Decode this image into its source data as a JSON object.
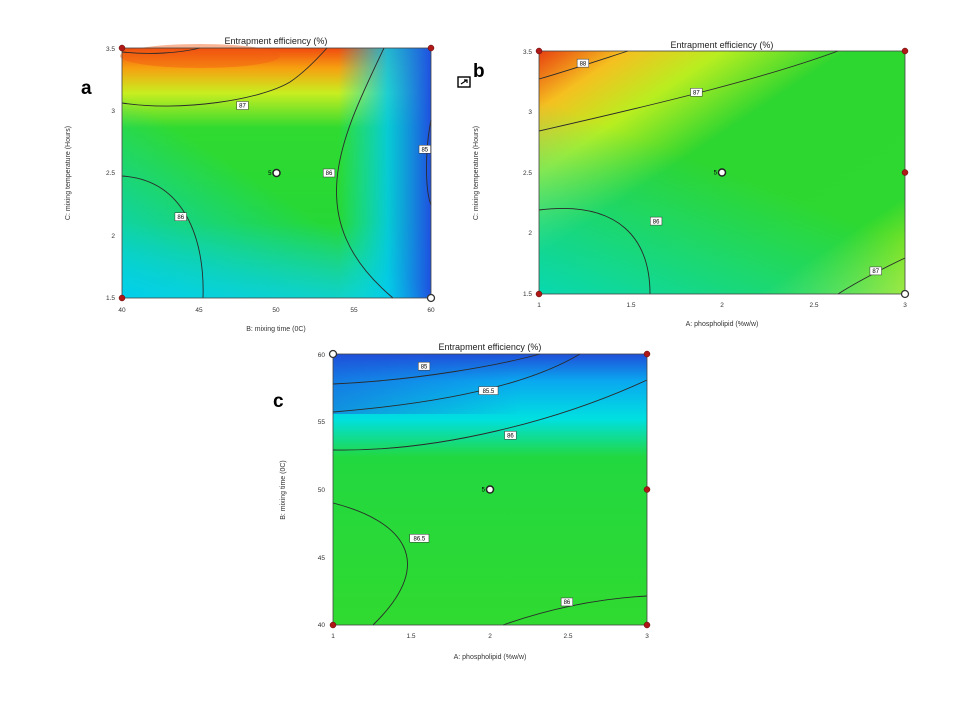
{
  "figure": {
    "panel_letters": [
      "a",
      "b",
      "c"
    ],
    "colors": {
      "low": "#1f4fd9",
      "mid_low": "#00d8f0",
      "mid": "#22d82a",
      "mid_high": "#dcf020",
      "high": "#f04a10",
      "design_point": "#b01818",
      "contour_line": "#2a2a2a"
    }
  },
  "chart_data": [
    {
      "type": "heatmap",
      "panel": "a",
      "title": "Entrapment efficiency (%)",
      "xlabel": "B: mixing time (0C)",
      "ylabel": "C: mixing temperature (Hours)",
      "xlim": [
        40,
        60
      ],
      "ylim": [
        1.5,
        3.5
      ],
      "xticks": [
        "40",
        "45",
        "50",
        "55",
        "60"
      ],
      "yticks": [
        "1.5",
        "2",
        "2.5",
        "3",
        "3.5"
      ],
      "contour_labels": [
        {
          "x": 47.8,
          "y": 3.04,
          "label": "87"
        },
        {
          "x": 43.8,
          "y": 2.15,
          "label": "86"
        },
        {
          "x": 53.4,
          "y": 2.5,
          "label": "86"
        },
        {
          "x": 59.6,
          "y": 2.69,
          "label": "85"
        }
      ],
      "center_point": {
        "x": 50,
        "y": 2.5,
        "label": "5"
      },
      "design_points": [
        {
          "x": 40,
          "y": 3.5,
          "kind": "filled"
        },
        {
          "x": 60,
          "y": 3.5,
          "kind": "filled"
        },
        {
          "x": 40,
          "y": 1.5,
          "kind": "filled"
        },
        {
          "x": 60,
          "y": 1.5,
          "kind": "open"
        }
      ]
    },
    {
      "type": "heatmap",
      "panel": "b",
      "title": "Entrapment efficiency (%)",
      "xlabel": "A: phospholipid (%w/w)",
      "ylabel": "C: mixing temperature (Hours)",
      "xlim": [
        1,
        3
      ],
      "ylim": [
        1.5,
        3.5
      ],
      "xticks": [
        "1",
        "1.5",
        "2",
        "2.5",
        "3"
      ],
      "yticks": [
        "1.5",
        "2",
        "2.5",
        "3",
        "3.5"
      ],
      "contour_labels": [
        {
          "x": 1.24,
          "y": 3.4,
          "label": "88"
        },
        {
          "x": 1.86,
          "y": 3.16,
          "label": "87"
        },
        {
          "x": 1.64,
          "y": 2.1,
          "label": "86"
        },
        {
          "x": 2.84,
          "y": 1.69,
          "label": "87"
        }
      ],
      "center_point": {
        "x": 2,
        "y": 2.5,
        "label": "5"
      },
      "design_points": [
        {
          "x": 1,
          "y": 3.5,
          "kind": "filled"
        },
        {
          "x": 3,
          "y": 3.5,
          "kind": "filled"
        },
        {
          "x": 1,
          "y": 1.5,
          "kind": "filled"
        },
        {
          "x": 3,
          "y": 2.5,
          "kind": "filled"
        },
        {
          "x": 3,
          "y": 1.5,
          "kind": "open"
        }
      ]
    },
    {
      "type": "heatmap",
      "panel": "c",
      "title": "Entrapment efficiency (%)",
      "xlabel": "A: phospholipid (%w/w)",
      "ylabel": "B: mixing time (0C)",
      "xlim": [
        1,
        3
      ],
      "ylim": [
        40,
        60
      ],
      "xticks": [
        "1",
        "1.5",
        "2",
        "2.5",
        "3"
      ],
      "yticks": [
        "40",
        "45",
        "50",
        "55",
        "60"
      ],
      "contour_labels": [
        {
          "x": 1.58,
          "y": 59.1,
          "label": "85"
        },
        {
          "x": 1.99,
          "y": 57.3,
          "label": "85.5"
        },
        {
          "x": 2.13,
          "y": 54.0,
          "label": "86"
        },
        {
          "x": 1.55,
          "y": 46.4,
          "label": "86.5"
        },
        {
          "x": 2.49,
          "y": 41.7,
          "label": "86"
        }
      ],
      "center_point": {
        "x": 2,
        "y": 50,
        "label": "5"
      },
      "design_points": [
        {
          "x": 1,
          "y": 60,
          "kind": "open"
        },
        {
          "x": 3,
          "y": 60,
          "kind": "filled"
        },
        {
          "x": 3,
          "y": 50,
          "kind": "filled"
        },
        {
          "x": 1,
          "y": 40,
          "kind": "filled"
        },
        {
          "x": 3,
          "y": 40,
          "kind": "filled"
        }
      ]
    }
  ]
}
